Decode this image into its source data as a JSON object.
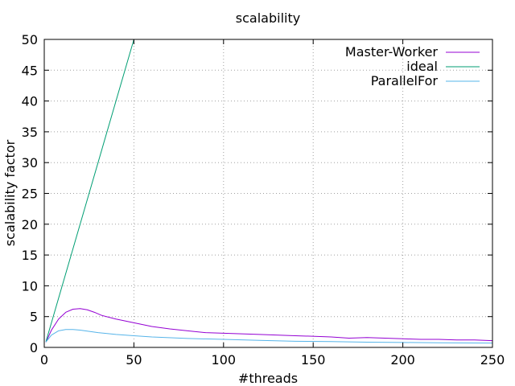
{
  "chart_data": {
    "type": "line",
    "title": "scalability",
    "xlabel": "#threads",
    "ylabel": "scalability factor",
    "xlim": [
      0,
      250
    ],
    "ylim": [
      0,
      50
    ],
    "x_ticks": [
      0,
      50,
      100,
      150,
      200,
      250
    ],
    "y_ticks": [
      0,
      5,
      10,
      15,
      20,
      25,
      30,
      35,
      40,
      45,
      50
    ],
    "grid": true,
    "legend_position": "top-right",
    "series": [
      {
        "name": "Master-Worker",
        "color": "#9400d3",
        "x": [
          1,
          4,
          8,
          12,
          16,
          20,
          24,
          28,
          32,
          40,
          50,
          60,
          70,
          80,
          90,
          100,
          120,
          140,
          160,
          170,
          180,
          190,
          200,
          210,
          220,
          230,
          240,
          250
        ],
        "y": [
          0.9,
          2.8,
          4.6,
          5.7,
          6.2,
          6.3,
          6.1,
          5.7,
          5.2,
          4.6,
          4.0,
          3.4,
          3.0,
          2.7,
          2.4,
          2.3,
          2.1,
          1.9,
          1.7,
          1.5,
          1.6,
          1.5,
          1.4,
          1.3,
          1.3,
          1.2,
          1.2,
          1.1
        ]
      },
      {
        "name": "ideal",
        "color": "#009e73",
        "x": [
          1,
          50
        ],
        "y": [
          1,
          50
        ]
      },
      {
        "name": "ParallelFor",
        "color": "#56b4e9",
        "x": [
          1,
          4,
          8,
          12,
          16,
          20,
          30,
          40,
          50,
          60,
          80,
          100,
          120,
          140,
          160,
          180,
          200,
          220,
          250
        ],
        "y": [
          0.9,
          2.0,
          2.7,
          2.9,
          2.9,
          2.8,
          2.4,
          2.1,
          1.9,
          1.7,
          1.45,
          1.3,
          1.15,
          1.0,
          0.95,
          0.85,
          0.8,
          0.75,
          0.7
        ]
      }
    ]
  }
}
